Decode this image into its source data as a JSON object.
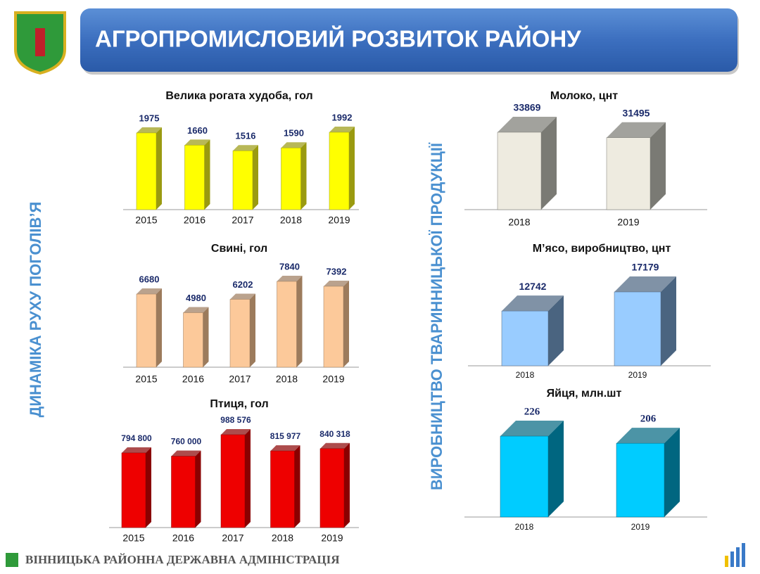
{
  "header": {
    "title": "АГРОПРОМИСЛОВИЙ РОЗВИТОК РАЙОНУ"
  },
  "side_labels": {
    "left": "ДИНАМІКА РУХУ  ПОГОЛІВ’Я",
    "right": "ВИРОБНИЦТВО ТВАРИННИЦЬКОЇ  ПРОДУКЦІЇ"
  },
  "footer": {
    "text": "ВІННИЦЬКА РАЙОННА ДЕРЖАВНА АДМІНІСТРАЦІЯ"
  },
  "chart_data": [
    {
      "type": "bar",
      "title": "Велика рогата худоба, гол",
      "categories": [
        "2015",
        "2016",
        "2017",
        "2018",
        "2019"
      ],
      "values": [
        1975,
        1660,
        1516,
        1590,
        1992
      ],
      "color": "#ffff00",
      "side_color": "#9a9a10"
    },
    {
      "type": "bar",
      "title": "Свині, гол",
      "categories": [
        "2015",
        "2016",
        "2017",
        "2018",
        "2019"
      ],
      "values": [
        6680,
        4980,
        6202,
        7840,
        7392
      ],
      "color": "#fcc99a",
      "side_color": "#9c7b5c"
    },
    {
      "type": "bar",
      "title": "Птиця, гол",
      "categories": [
        "2015",
        "2016",
        "2017",
        "2018",
        "2019"
      ],
      "values": [
        794800,
        760000,
        988576,
        815977,
        840318
      ],
      "value_labels": [
        "794 800",
        "760 000",
        "988 576",
        "815 977",
        "840 318"
      ],
      "color": "#ee0000",
      "side_color": "#8a0000"
    },
    {
      "type": "bar",
      "title": "Молоко, цнт",
      "categories": [
        "2018",
        "2019"
      ],
      "values": [
        33869,
        31495
      ],
      "color": "#eeebe0",
      "side_color": "#7a7a74"
    },
    {
      "type": "bar",
      "title": "М’ясо, виробництво, цнт",
      "categories": [
        "2018",
        "2019"
      ],
      "values": [
        12742,
        17179
      ],
      "color": "#99ccff",
      "side_color": "#4a6480"
    },
    {
      "type": "bar",
      "title": "Яйця, млн.шт",
      "categories": [
        "2018",
        "2019"
      ],
      "values": [
        226,
        206
      ],
      "color": "#00ccff",
      "side_color": "#006680"
    }
  ]
}
